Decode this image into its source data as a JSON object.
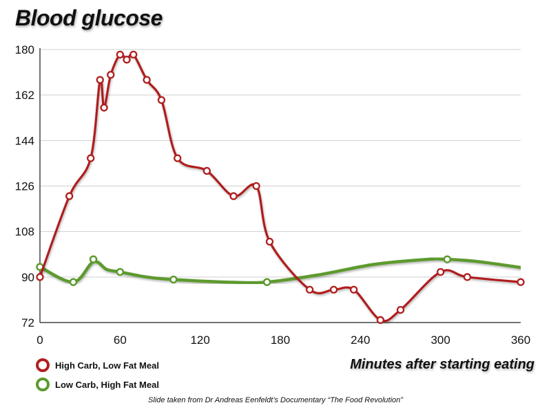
{
  "chart_data": {
    "type": "line",
    "title": "Blood glucose",
    "xlabel": "Minutes after starting eating",
    "ylabel": "",
    "xlim": [
      0,
      360
    ],
    "ylim": [
      72,
      180
    ],
    "xticks": [
      "0",
      "60",
      "120",
      "180",
      "240",
      "300",
      "360"
    ],
    "yticks": [
      "72",
      "90",
      "108",
      "126",
      "144",
      "162",
      "180"
    ],
    "grid": "horizontal",
    "legend": "bottom-left",
    "series": [
      {
        "name": "High Carb, Low Fat Meal",
        "color": "#b01e1e",
        "x": [
          0,
          22,
          38,
          45,
          48,
          53,
          60,
          65,
          70,
          80,
          91,
          103,
          125,
          145,
          162,
          172,
          202,
          220,
          235,
          255,
          270,
          300,
          320,
          360
        ],
        "y": [
          90,
          122,
          137,
          168,
          157,
          170,
          178,
          176,
          178,
          168,
          160,
          137,
          132,
          122,
          126,
          104,
          85,
          85,
          85,
          73,
          77,
          92,
          90,
          88
        ]
      },
      {
        "name": "Low Carb, High Fat Meal",
        "color": "#5d9a2e",
        "curve_x": [
          0,
          25,
          40,
          50,
          60,
          80,
          100,
          140,
          170,
          210,
          250,
          290,
          305,
          330,
          370
        ],
        "curve_y": [
          94,
          88,
          96,
          93,
          92,
          90,
          89,
          88,
          88,
          91,
          95,
          97,
          97,
          96,
          93
        ],
        "marker_x": [
          0,
          25,
          40,
          60,
          100,
          170,
          305
        ],
        "marker_y": [
          94,
          88,
          97,
          92,
          89,
          88,
          97
        ]
      }
    ]
  },
  "source_note": "Slide taken from Dr Andreas Eenfeldt’s Documentary “The Food Revolution”"
}
